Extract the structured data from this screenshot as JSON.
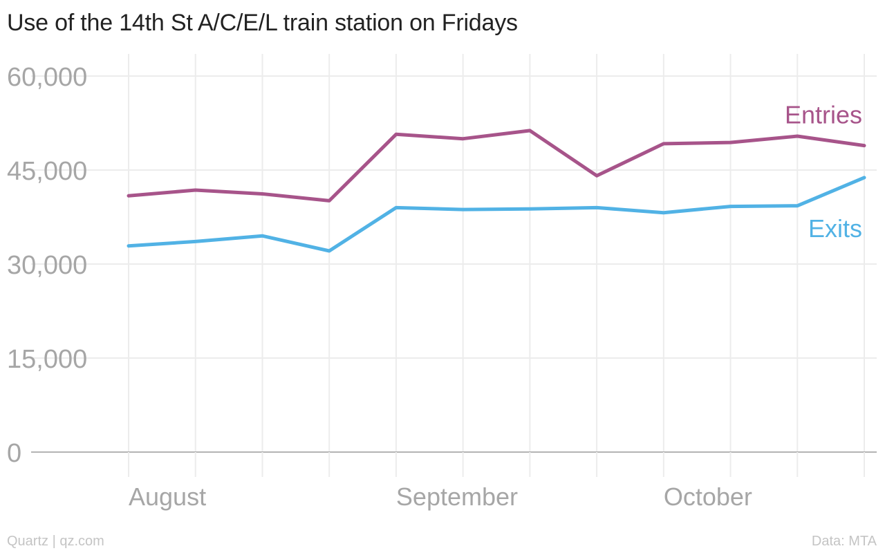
{
  "chart_data": {
    "type": "line",
    "title": "Use of the 14th St A/C/E/L train station on Fridays",
    "xlabel": "",
    "ylabel": "",
    "x": [
      1,
      2,
      3,
      4,
      5,
      6,
      7,
      8,
      9,
      10,
      11,
      12
    ],
    "x_ticks": [
      {
        "x": 1,
        "label": "August"
      },
      {
        "x": 5,
        "label": "September"
      },
      {
        "x": 9,
        "label": "October"
      }
    ],
    "ylim": [
      0,
      60000
    ],
    "yticks": [
      0,
      15000,
      30000,
      45000,
      60000
    ],
    "ytick_labels": [
      "0",
      "15,000",
      "30,000",
      "45,000",
      "60,000"
    ],
    "grid": true,
    "series": [
      {
        "name": "Entries",
        "color": "#a7548a",
        "values": [
          40900,
          41800,
          41200,
          40100,
          50700,
          50000,
          51300,
          44100,
          49200,
          49400,
          50400,
          48900
        ]
      },
      {
        "name": "Exits",
        "color": "#51b2e5",
        "values": [
          32900,
          33600,
          34500,
          32100,
          39000,
          38700,
          38800,
          39000,
          38200,
          39200,
          39300,
          43800
        ]
      }
    ]
  },
  "footer": {
    "source_left": "Quartz | qz.com",
    "source_right": "Data: MTA"
  }
}
